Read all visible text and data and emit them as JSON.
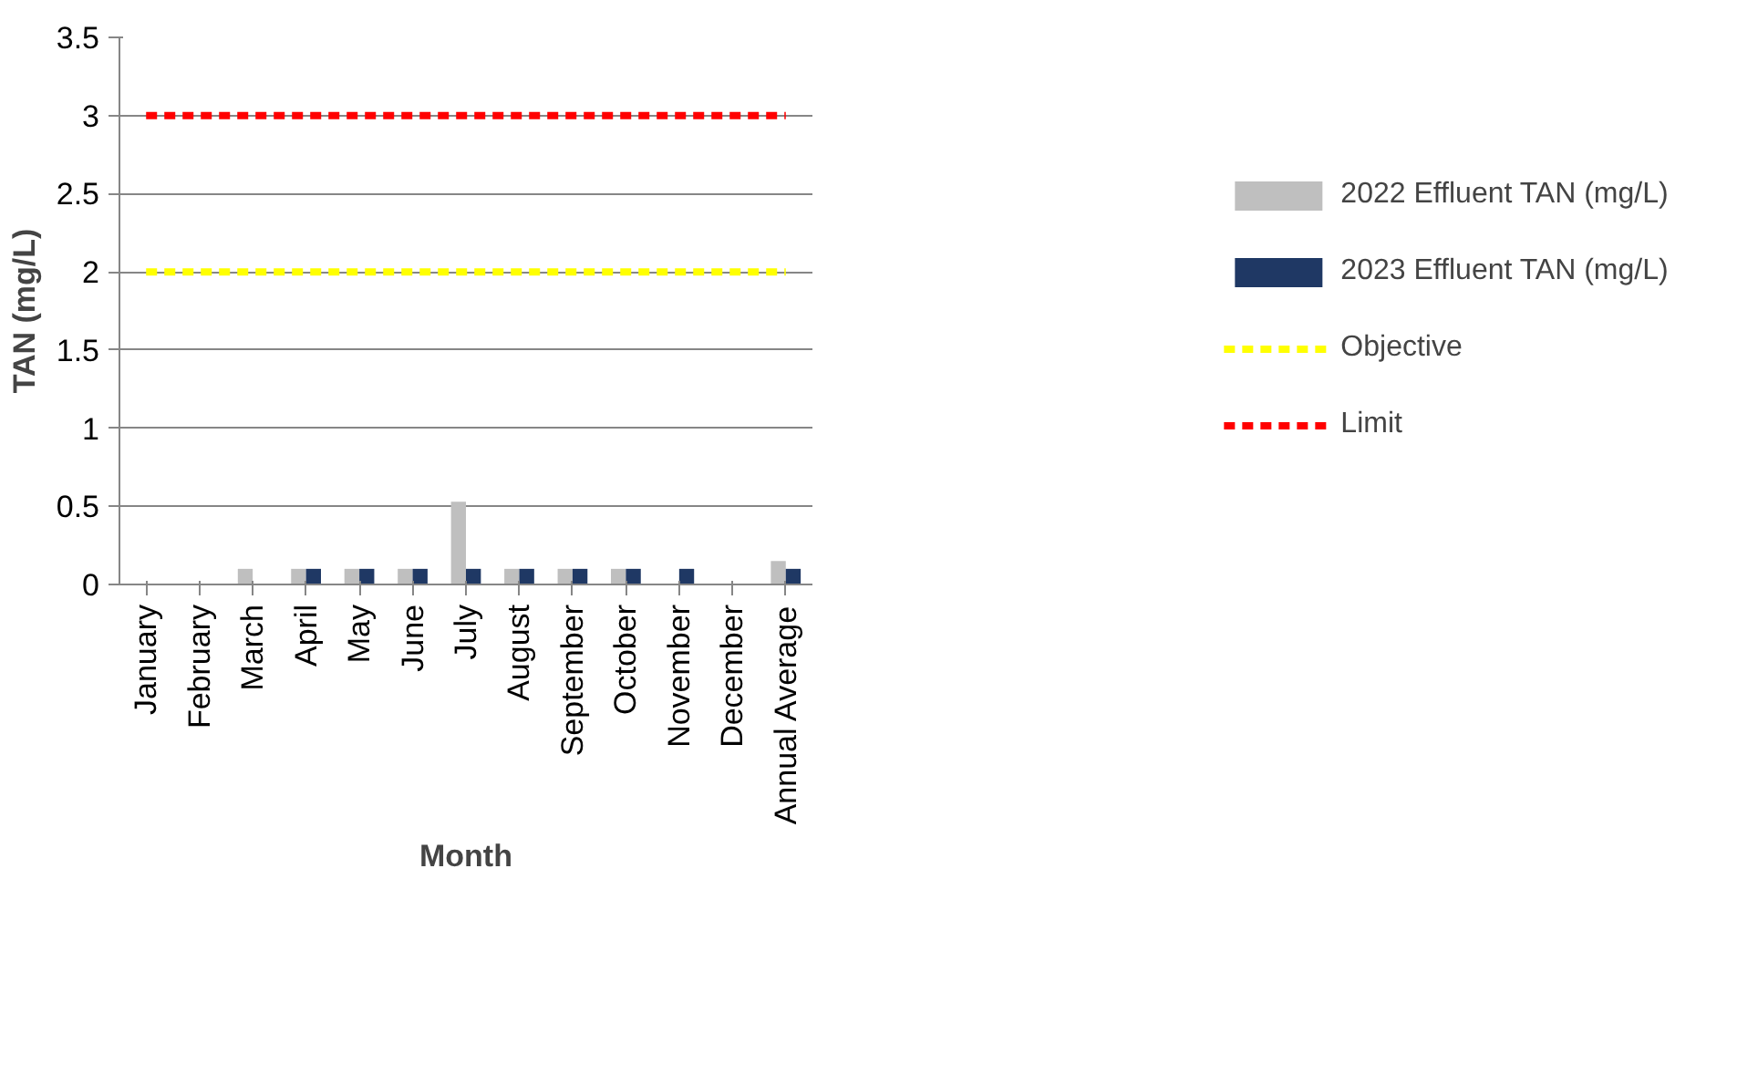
{
  "chart_data": {
    "type": "bar",
    "xlabel": "Month",
    "ylabel": "TAN (mg/L)",
    "categories": [
      "January",
      "February",
      "March",
      "April",
      "May",
      "June",
      "July",
      "August",
      "September",
      "October",
      "November",
      "December",
      "Annual Average"
    ],
    "series": [
      {
        "name": "2022 Effluent TAN (mg/L)",
        "color": "#bfbfbf",
        "values": [
          null,
          null,
          0.1,
          0.1,
          0.1,
          0.1,
          0.53,
          0.1,
          0.1,
          0.1,
          null,
          null,
          0.15
        ]
      },
      {
        "name": "2023 Effluent TAN (mg/L)",
        "color": "#1f3864",
        "values": [
          null,
          null,
          null,
          0.1,
          0.1,
          0.1,
          0.1,
          0.1,
          0.1,
          0.1,
          0.1,
          null,
          0.1
        ]
      },
      {
        "name": "Objective",
        "type": "line",
        "line_style": "dashed",
        "color": "#ffff00",
        "values": [
          2,
          2,
          2,
          2,
          2,
          2,
          2,
          2,
          2,
          2,
          2,
          2,
          2
        ]
      },
      {
        "name": "Limit",
        "type": "line",
        "line_style": "dashed",
        "color": "#ff0000",
        "values": [
          3,
          3,
          3,
          3,
          3,
          3,
          3,
          3,
          3,
          3,
          3,
          3,
          3
        ]
      }
    ],
    "ylim": [
      0,
      3.5
    ],
    "yticks": [
      0,
      0.5,
      1,
      1.5,
      2,
      2.5,
      3,
      3.5
    ],
    "grid": "y",
    "legend": "right"
  }
}
